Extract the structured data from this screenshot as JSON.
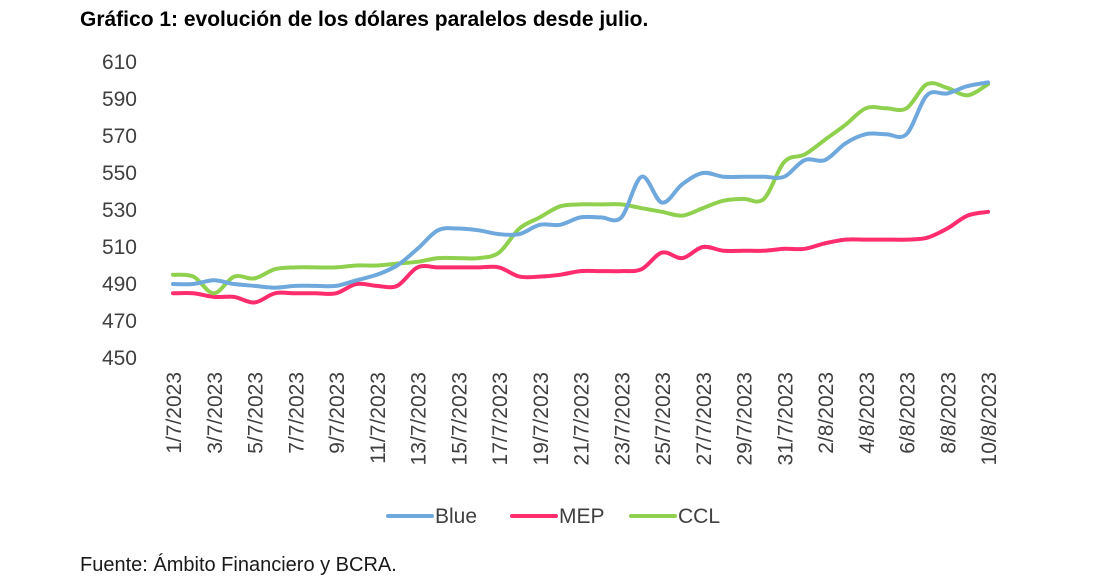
{
  "header": {
    "title": "Gráfico 1: evolución de los dólares paralelos desde julio."
  },
  "footer": {
    "source": "Fuente: Ámbito Financiero y BCRA."
  },
  "chart_data": {
    "type": "line",
    "title": "Gráfico 1: evolución de los dólares paralelos desde julio.",
    "xlabel": "",
    "ylabel": "",
    "ylim": [
      450,
      610
    ],
    "yticks": [
      450,
      470,
      490,
      510,
      530,
      550,
      570,
      590,
      610
    ],
    "grid": false,
    "legend": "bottom",
    "x": [
      "1/7/2023",
      "2/7/2023",
      "3/7/2023",
      "4/7/2023",
      "5/7/2023",
      "6/7/2023",
      "7/7/2023",
      "8/7/2023",
      "9/7/2023",
      "10/7/2023",
      "11/7/2023",
      "12/7/2023",
      "13/7/2023",
      "14/7/2023",
      "15/7/2023",
      "16/7/2023",
      "17/7/2023",
      "18/7/2023",
      "19/7/2023",
      "20/7/2023",
      "21/7/2023",
      "22/7/2023",
      "23/7/2023",
      "24/7/2023",
      "25/7/2023",
      "26/7/2023",
      "27/7/2023",
      "28/7/2023",
      "29/7/2023",
      "30/7/2023",
      "31/7/2023",
      "1/8/2023",
      "2/8/2023",
      "3/8/2023",
      "4/8/2023",
      "5/8/2023",
      "6/8/2023",
      "7/8/2023",
      "8/8/2023",
      "9/8/2023",
      "10/8/2023"
    ],
    "xtick_labels": [
      "1/7/2023",
      "3/7/2023",
      "5/7/2023",
      "7/7/2023",
      "9/7/2023",
      "11/7/2023",
      "13/7/2023",
      "15/7/2023",
      "17/7/2023",
      "19/7/2023",
      "21/7/2023",
      "23/7/2023",
      "25/7/2023",
      "27/7/2023",
      "29/7/2023",
      "31/7/2023",
      "2/8/2023",
      "4/8/2023",
      "6/8/2023",
      "8/8/2023",
      "10/8/2023"
    ],
    "series": [
      {
        "name": "Blue",
        "color": "#6fa8dc",
        "values": [
          490,
          490,
          492,
          490,
          489,
          488,
          489,
          489,
          489,
          492,
          495,
          500,
          509,
          519,
          520,
          519,
          517,
          517,
          522,
          522,
          526,
          526,
          526,
          548,
          534,
          544,
          550,
          548,
          548,
          548,
          548,
          557,
          557,
          566,
          571,
          571,
          571,
          592,
          593,
          597,
          599
        ]
      },
      {
        "name": "MEP",
        "color": "#ff2d6e",
        "values": [
          485,
          485,
          483,
          483,
          480,
          485,
          485,
          485,
          485,
          490,
          489,
          489,
          499,
          499,
          499,
          499,
          499,
          494,
          494,
          495,
          497,
          497,
          497,
          498,
          507,
          504,
          510,
          508,
          508,
          508,
          509,
          509,
          512,
          514,
          514,
          514,
          514,
          515,
          520,
          527,
          529
        ]
      },
      {
        "name": "CCL",
        "color": "#8fd14f",
        "values": [
          495,
          494,
          485,
          494,
          493,
          498,
          499,
          499,
          499,
          500,
          500,
          501,
          502,
          504,
          504,
          504,
          507,
          520,
          526,
          532,
          533,
          533,
          533,
          531,
          529,
          527,
          531,
          535,
          536,
          536,
          556,
          560,
          568,
          576,
          585,
          585,
          585,
          598,
          596,
          592,
          598
        ]
      }
    ]
  }
}
